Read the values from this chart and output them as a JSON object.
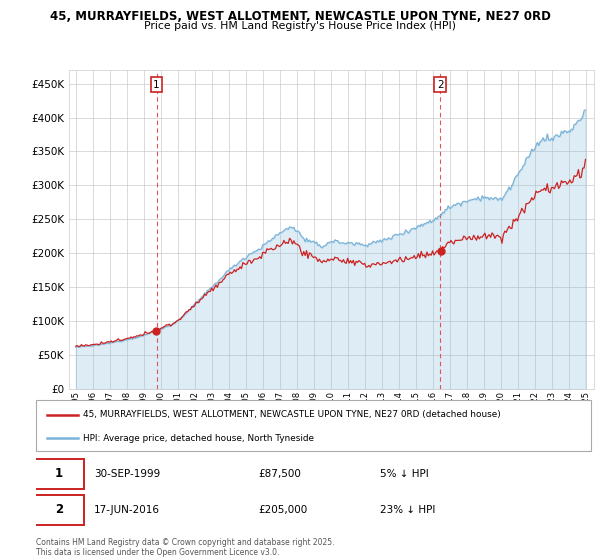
{
  "title": "45, MURRAYFIELDS, WEST ALLOTMENT, NEWCASTLE UPON TYNE, NE27 0RD",
  "subtitle": "Price paid vs. HM Land Registry's House Price Index (HPI)",
  "legend_line1": "45, MURRAYFIELDS, WEST ALLOTMENT, NEWCASTLE UPON TYNE, NE27 0RD (detached house)",
  "legend_line2": "HPI: Average price, detached house, North Tyneside",
  "sale1_label": "1",
  "sale1_date": "30-SEP-1999",
  "sale1_price": "£87,500",
  "sale1_hpi": "5% ↓ HPI",
  "sale2_label": "2",
  "sale2_date": "17-JUN-2016",
  "sale2_price": "£205,000",
  "sale2_hpi": "23% ↓ HPI",
  "footer": "Contains HM Land Registry data © Crown copyright and database right 2025.\nThis data is licensed under the Open Government Licence v3.0.",
  "hpi_color": "#7ab4d8",
  "hpi_fill_color": "#ddeeff",
  "sale_color": "#cc2222",
  "vline_color": "#dd4444",
  "background_color": "#ffffff",
  "grid_color": "#cccccc",
  "ylim": [
    0,
    470000
  ],
  "yticks": [
    0,
    50000,
    100000,
    150000,
    200000,
    250000,
    300000,
    350000,
    400000,
    450000
  ],
  "sale1_year": 1999.75,
  "sale2_year": 2016.46,
  "sale1_price_val": 87500,
  "sale2_price_val": 205000
}
